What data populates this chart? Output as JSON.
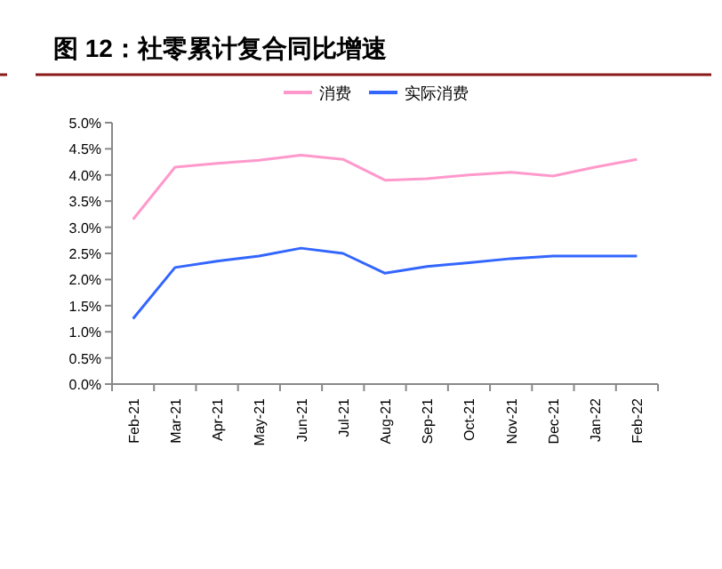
{
  "chart_data": {
    "type": "line",
    "title": "图 12：社零累计复合同比增速",
    "categories": [
      "Feb-21",
      "Mar-21",
      "Apr-21",
      "May-21",
      "Jun-21",
      "Jul-21",
      "Aug-21",
      "Sep-21",
      "Oct-21",
      "Nov-21",
      "Dec-21",
      "Jan-22",
      "Feb-22"
    ],
    "series": [
      {
        "name": "消费",
        "color": "#ff99cc",
        "values": [
          3.15,
          4.15,
          4.22,
          4.28,
          4.38,
          4.3,
          3.9,
          3.93,
          4.0,
          4.05,
          3.98,
          4.15,
          4.3
        ]
      },
      {
        "name": "实际消费",
        "color": "#3366ff",
        "values": [
          1.25,
          2.23,
          2.35,
          2.45,
          2.6,
          2.5,
          2.12,
          2.25,
          2.32,
          2.4,
          2.45,
          2.45,
          2.45
        ]
      }
    ],
    "ylim": [
      0,
      5
    ],
    "yticks": [
      {
        "value": 0,
        "label": "0.0%"
      },
      {
        "value": 0.5,
        "label": "0.5%"
      },
      {
        "value": 1,
        "label": "1.0%"
      },
      {
        "value": 1.5,
        "label": "1.5%"
      },
      {
        "value": 2,
        "label": "2.0%"
      },
      {
        "value": 2.5,
        "label": "2.5%"
      },
      {
        "value": 3,
        "label": "3.0%"
      },
      {
        "value": 3.5,
        "label": "3.5%"
      },
      {
        "value": 4,
        "label": "4.0%"
      },
      {
        "value": 4.5,
        "label": "4.5%"
      },
      {
        "value": 5,
        "label": "5.0%"
      }
    ],
    "legend": "top",
    "grid": false,
    "marker": "none",
    "line_style": "solid"
  }
}
